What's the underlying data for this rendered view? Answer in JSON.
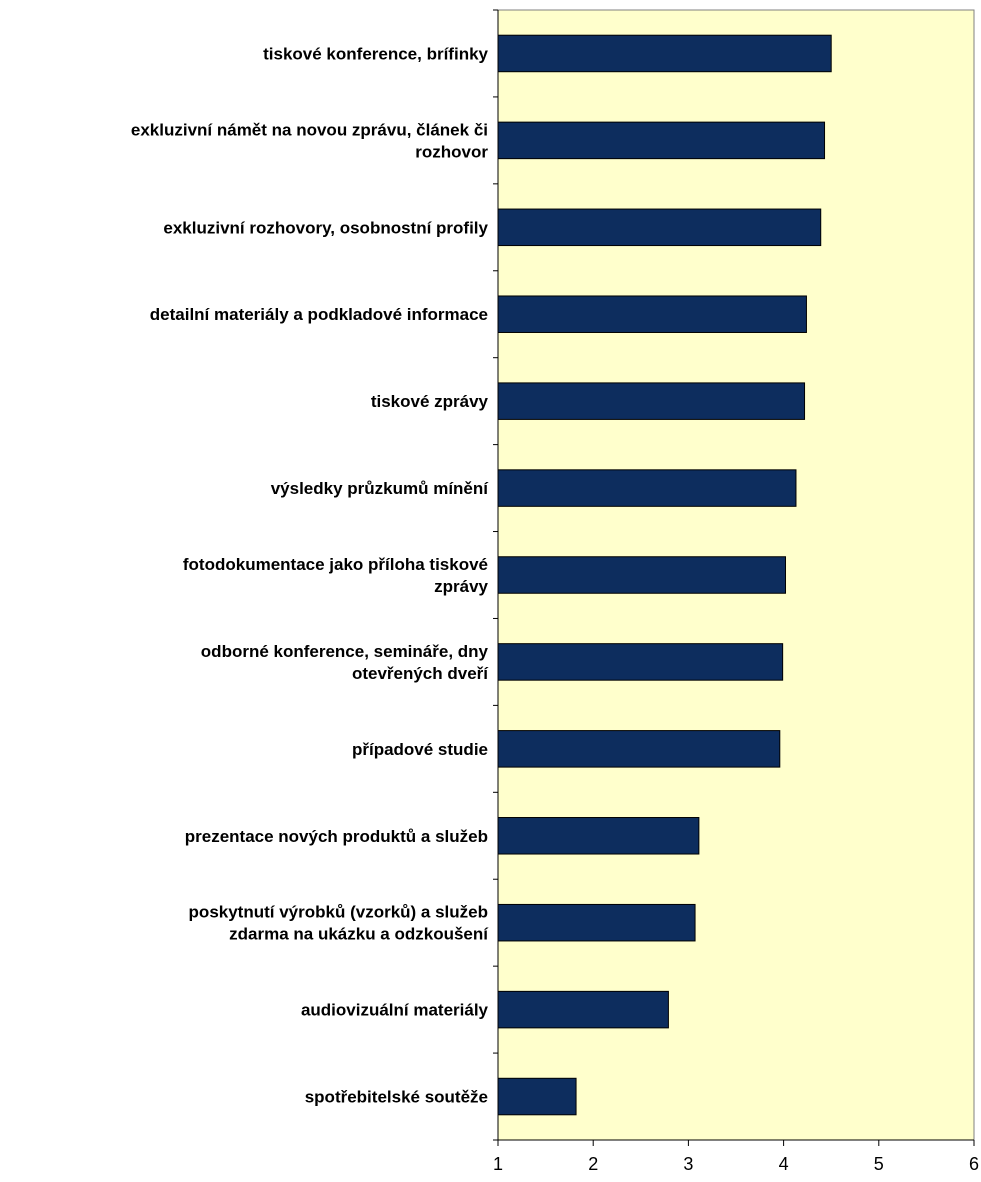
{
  "chart_data": {
    "type": "bar",
    "orientation": "horizontal",
    "title": "",
    "xlabel": "",
    "ylabel": "",
    "xlim": [
      1,
      6
    ],
    "x_ticks": [
      1,
      2,
      3,
      4,
      5,
      6
    ],
    "grid": false,
    "legend": "none",
    "colors": {
      "plot_background": "#ffffcc",
      "bar_fill": "#0d2d5e",
      "bar_border": "#000000"
    },
    "categories": [
      [
        "tiskové konference, brífinky"
      ],
      [
        "exkluzivní námět na novou zprávu, článek či",
        "rozhovor"
      ],
      [
        "exkluzivní rozhovory, osobnostní profily"
      ],
      [
        "detailní materiály a podkladové informace"
      ],
      [
        "tiskové zprávy"
      ],
      [
        "výsledky průzkumů mínění"
      ],
      [
        "fotodokumentace jako příloha tiskové",
        "zprávy"
      ],
      [
        "odborné konference, semináře, dny",
        "otevřených dveří"
      ],
      [
        "případové studie"
      ],
      [
        "prezentace nových produktů a služeb"
      ],
      [
        "poskytnutí výrobků (vzorků) a služeb",
        "zdarma na ukázku a odzkoušení"
      ],
      [
        "audiovizuální materiály"
      ],
      [
        "spotřebitelské soutěže"
      ]
    ],
    "values": [
      4.5,
      4.43,
      4.39,
      4.24,
      4.22,
      4.13,
      4.02,
      3.99,
      3.96,
      3.11,
      3.07,
      2.79,
      1.82
    ]
  }
}
